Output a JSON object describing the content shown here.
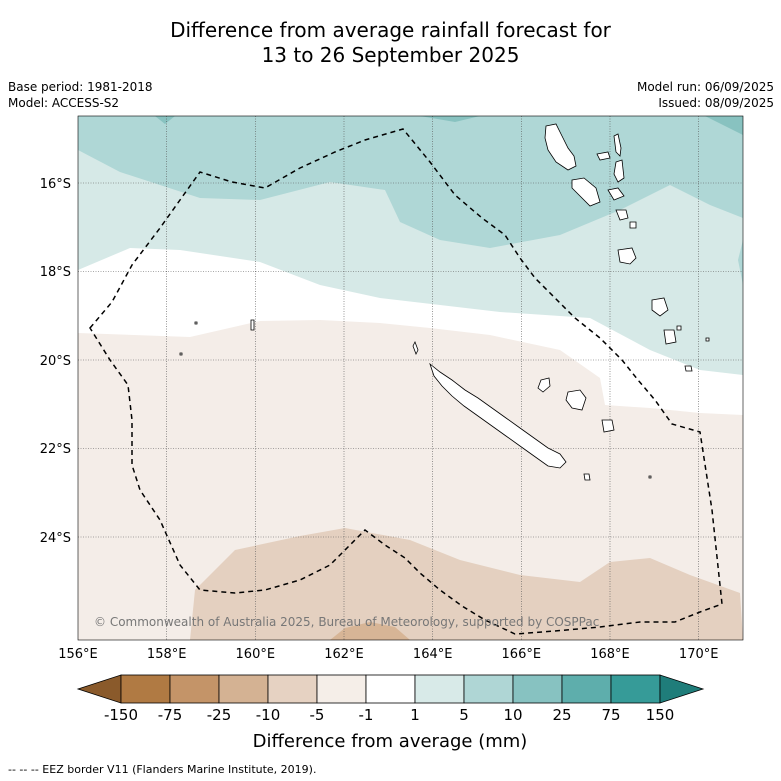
{
  "title_line1": "Difference from average rainfall forecast for",
  "title_line2": "13 to 26 September 2025",
  "base_period": "Base period: 1981-2018",
  "model": "Model: ACCESS-S2",
  "model_run": "Model run: 06/09/2025",
  "issued": "Issued: 08/09/2025",
  "copyright": "© Commonwealth of Australia 2025, Bureau of Meteorology, supported by COSPPac",
  "lat_labels": [
    "16°S",
    "18°S",
    "20°S",
    "22°S",
    "24°S"
  ],
  "lon_labels": [
    "156°E",
    "158°E",
    "160°E",
    "162°E",
    "164°E",
    "166°E",
    "168°E",
    "170°E"
  ],
  "colorbar": {
    "title": "Difference from average (mm)",
    "tick_labels": [
      "-150",
      "-75",
      "-25",
      "-10",
      "-5",
      "-1",
      "1",
      "5",
      "10",
      "25",
      "75",
      "150"
    ],
    "colors": [
      "#8a5a2b",
      "#b07a43",
      "#c49468",
      "#d4b293",
      "#e6d2c2",
      "#f5eee8",
      "#ffffff",
      "#d8eae8",
      "#afd6d5",
      "#87c2c1",
      "#5eaeac",
      "#369b98",
      "#1f7d7a"
    ]
  },
  "legend_note": "--  --  -- EEZ border V11 (Flanders Marine Institute, 2019)."
}
